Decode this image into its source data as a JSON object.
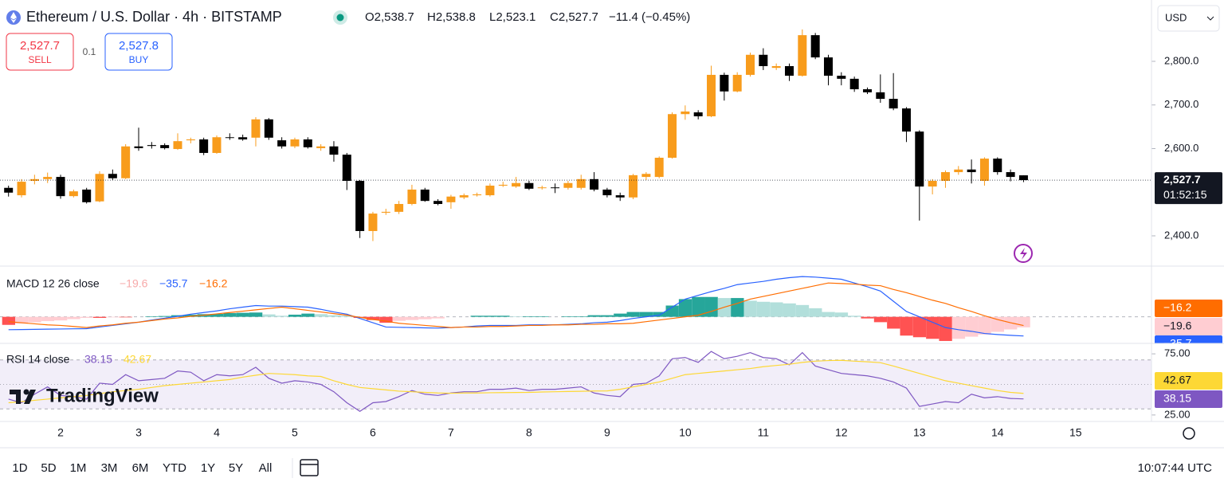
{
  "header": {
    "title": "Ethereum / U.S. Dollar · 4h · BITSTAMP",
    "ohlc": [
      "O2,538.7",
      "H2,538.8",
      "L2,523.1",
      "C2,527.7"
    ],
    "change": "−11.4 (−0.45%)"
  },
  "trade": {
    "sell_price": "2,527.7",
    "sell": "SELL",
    "qty": "0.1",
    "buy_price": "2,527.8",
    "buy": "BUY"
  },
  "currency": "USD",
  "brand": "TradingView",
  "toolbar": {
    "ranges": [
      "1D",
      "5D",
      "1M",
      "3M",
      "6M",
      "YTD",
      "1Y",
      "5Y",
      "All"
    ],
    "time": "10:07:44 UTC"
  },
  "chart_data": [
    {
      "type": "candlestick",
      "up_color": "#f89c1c",
      "down_color": "#000000",
      "categories": [
        null,
        null,
        null,
        null,
        "2",
        null,
        null,
        null,
        null,
        null,
        "3",
        null,
        null,
        null,
        null,
        null,
        "4",
        null,
        null,
        null,
        null,
        null,
        "5",
        null,
        null,
        null,
        null,
        null,
        "6",
        null,
        null,
        null,
        null,
        null,
        "7",
        null,
        null,
        null,
        null,
        null,
        "8",
        null,
        null,
        null,
        null,
        null,
        "9",
        null,
        null,
        null,
        null,
        null,
        "10",
        null,
        null,
        null,
        null,
        null,
        "11",
        null,
        null,
        null,
        null,
        null,
        "12",
        null,
        null,
        null,
        null,
        null,
        "13",
        null,
        null,
        null,
        null,
        null,
        "14",
        null,
        null,
        null,
        null,
        null,
        "15",
        null,
        null,
        null,
        null,
        null
      ],
      "open": [
        2510,
        2493,
        2526,
        2530,
        2535,
        2491,
        2506,
        2479,
        2542,
        2532,
        2605,
        2608,
        2608,
        2599,
        2619,
        2621,
        2590,
        2626,
        2626,
        2625,
        2667,
        2619,
        2605,
        2621,
        2601,
        2605,
        2586,
        2526,
        2411,
        2453,
        2455,
        2473,
        2506,
        2480,
        2477,
        2488,
        2493,
        2493,
        2515,
        2513,
        2521,
        2510,
        2511,
        2510,
        2510,
        2530,
        2506,
        2493,
        2488,
        2535,
        2535,
        2579,
        2679,
        2683,
        2674,
        2769,
        2731,
        2769,
        2815,
        2785,
        2789,
        2767,
        2860,
        2809,
        2767,
        2760,
        2736,
        2729,
        2714,
        2692,
        2639,
        2513,
        2526,
        2546,
        2552,
        2526,
        2577,
        2546,
        2538.7,
        null,
        null,
        null,
        null,
        null,
        null,
        null,
        null,
        null
      ],
      "high": [
        2515,
        2530,
        2540,
        2545,
        2540,
        2506,
        2510,
        2548,
        2552,
        2610,
        2648,
        2615,
        2612,
        2635,
        2625,
        2625,
        2630,
        2635,
        2632,
        2672,
        2670,
        2626,
        2625,
        2626,
        2610,
        2617,
        2590,
        2528,
        2455,
        2462,
        2480,
        2517,
        2510,
        2484,
        2494,
        2497,
        2499,
        2520,
        2524,
        2535,
        2526,
        2515,
        2520,
        2526,
        2540,
        2546,
        2510,
        2499,
        2542,
        2546,
        2582,
        2683,
        2699,
        2688,
        2790,
        2774,
        2775,
        2820,
        2830,
        2795,
        2795,
        2873,
        2865,
        2815,
        2775,
        2765,
        2740,
        2770,
        2773,
        2695,
        2642,
        2530,
        2550,
        2560,
        2575,
        2580,
        2580,
        2552,
        2538.8,
        null,
        null,
        null,
        null,
        null,
        null,
        null,
        null,
        null
      ],
      "low": [
        2490,
        2488,
        2518,
        2521,
        2485,
        2488,
        2474,
        2477,
        2528,
        2530,
        2595,
        2600,
        2598,
        2597,
        2612,
        2585,
        2588,
        2620,
        2618,
        2605,
        2620,
        2600,
        2601,
        2600,
        2595,
        2570,
        2505,
        2395,
        2388,
        2448,
        2450,
        2470,
        2478,
        2470,
        2462,
        2484,
        2490,
        2490,
        2512,
        2510,
        2505,
        2506,
        2498,
        2506,
        2506,
        2502,
        2488,
        2480,
        2484,
        2528,
        2532,
        2577,
        2666,
        2667,
        2672,
        2710,
        2729,
        2765,
        2780,
        2780,
        2755,
        2765,
        2805,
        2745,
        2745,
        2730,
        2725,
        2705,
        2688,
        2615,
        2435,
        2495,
        2510,
        2540,
        2520,
        2515,
        2540,
        2525,
        2523.1,
        null,
        null,
        null,
        null,
        null,
        null,
        null,
        null,
        null
      ],
      "close": [
        2499,
        2524,
        2530,
        2535,
        2491,
        2502,
        2477,
        2542,
        2532,
        2605,
        2601,
        2606,
        2601,
        2617,
        2621,
        2590,
        2626,
        2625,
        2621,
        2667,
        2625,
        2605,
        2621,
        2603,
        2605,
        2586,
        2526,
        2411,
        2451,
        2455,
        2473,
        2506,
        2480,
        2473,
        2490,
        2493,
        2495,
        2515,
        2517,
        2521,
        2508,
        2511,
        2510,
        2521,
        2530,
        2506,
        2493,
        2488,
        2539,
        2542,
        2579,
        2679,
        2685,
        2674,
        2769,
        2731,
        2769,
        2815,
        2789,
        2789,
        2767,
        2860,
        2809,
        2767,
        2760,
        2736,
        2729,
        2714,
        2692,
        2639,
        2513,
        2526,
        2546,
        2552,
        2546,
        2577,
        2546,
        2535,
        2527.7,
        null,
        null,
        null,
        null,
        null,
        null,
        null,
        null,
        null
      ],
      "last_label": "2,527.7",
      "countdown": "01:52:15",
      "ylim": [
        2332.4,
        2940.6
      ],
      "yticks": [
        {
          "value": 2400,
          "label": "2,400.0"
        },
        {
          "value": 2600,
          "label": "2,600.0"
        },
        {
          "value": 2700,
          "label": "2,700.0"
        },
        {
          "value": 2800,
          "label": "2,800.0"
        }
      ],
      "grid": false
    },
    {
      "type": "macd",
      "title": "MACD 12 26 close",
      "ylim": [
        -49.5,
        93
      ],
      "histogram": {
        "colors": [
          "#26a69a",
          "#b2dfdb",
          "#ff5252",
          "#ffcdd2"
        ],
        "last_label": "−19.6",
        "values": [
          -15,
          -12.7,
          -10.3,
          -8,
          -6.7,
          -4.3,
          -2,
          -2,
          -1,
          -1,
          0,
          1,
          1.5,
          3,
          4,
          5,
          5.5,
          7,
          7.5,
          8,
          4.5,
          2,
          4,
          6,
          5,
          3,
          2,
          -2,
          -6,
          -11,
          -7.5,
          -6,
          -4.5,
          -3,
          0,
          0,
          2,
          2,
          2,
          1,
          1,
          1,
          0,
          1,
          1,
          3,
          3,
          6,
          9,
          9,
          9,
          21,
          33,
          37,
          37,
          35,
          35,
          30,
          28,
          27,
          25,
          22,
          16,
          9,
          8,
          2,
          -3,
          -10,
          -22,
          -35,
          -38,
          -41,
          -45,
          -41,
          -37,
          -33,
          -28,
          -23.5,
          -19.6
        ]
      },
      "macd": {
        "color": "#2962ff",
        "last_label": "−35.7",
        "values": [
          -24,
          -23.7,
          -23.3,
          -23,
          -22.7,
          -22.3,
          -22,
          -19,
          -16,
          -13,
          -10,
          -6,
          -2.5,
          1,
          5,
          8,
          11,
          15,
          18,
          21,
          20,
          20,
          19,
          18,
          14,
          9,
          5,
          -3,
          -11,
          -19,
          -19.5,
          -20,
          -20.5,
          -21,
          -20,
          -19,
          -17,
          -16,
          -16,
          -16,
          -15,
          -15,
          -15,
          -14,
          -13,
          -11,
          -10,
          -7,
          -3,
          0,
          3,
          18,
          33,
          40,
          47,
          53,
          60,
          63,
          66,
          70,
          73,
          75,
          74,
          72,
          70,
          63,
          56,
          48,
          29,
          10,
          0,
          -10,
          -20,
          -24,
          -27,
          -31,
          -33,
          -34.5,
          -35.7
        ]
      },
      "signal": {
        "color": "#ff6d00",
        "last_label": "−16.2",
        "values": [
          -9,
          -11,
          -13,
          -15,
          -16,
          -18,
          -20,
          -17,
          -15,
          -12,
          -10,
          -7,
          -4,
          -2,
          1,
          3,
          5.5,
          8,
          10.5,
          13,
          15.5,
          18,
          15,
          12,
          9,
          6,
          3,
          -1,
          -5,
          -8,
          -12,
          -14,
          -16,
          -18,
          -20,
          -19,
          -19,
          -18,
          -18,
          -17,
          -16,
          -16,
          -15,
          -15,
          -14,
          -14,
          -13,
          -13,
          -12,
          -9,
          -6,
          -3,
          0,
          3,
          10,
          18,
          25,
          33,
          38,
          43,
          48,
          53,
          58,
          63,
          62,
          61,
          59,
          58,
          51,
          45,
          38,
          31,
          25,
          17,
          10,
          2,
          -5,
          -11,
          -16.2
        ]
      }
    },
    {
      "type": "rsi",
      "title": "RSI 14 close",
      "ylim": [
        19.7,
        82.9
      ],
      "levels": [
        30,
        50,
        70
      ],
      "band_color": "#7e57c2",
      "yticks": [
        {
          "value": 25,
          "label": "25.00"
        },
        {
          "value": 75,
          "label": "75.00"
        }
      ],
      "series": [
        {
          "color": "#7e57c2",
          "values": [
            38,
            35,
            42,
            48,
            41,
            40,
            38,
            51,
            50,
            58,
            53,
            54,
            55,
            61,
            60,
            53,
            58,
            57,
            58,
            64,
            55,
            51,
            53,
            52,
            50,
            44,
            35,
            28,
            35,
            36,
            40,
            45,
            42,
            41,
            43,
            44,
            44,
            46,
            46,
            47,
            45,
            46,
            46,
            47,
            48,
            43,
            41,
            40,
            50,
            51,
            57,
            71,
            72,
            68,
            77,
            71,
            73,
            76,
            72,
            71,
            66,
            76,
            65,
            62,
            59,
            58,
            57,
            55,
            52,
            47,
            32,
            34,
            36,
            35,
            42,
            39,
            40,
            38.5,
            38.15
          ]
        },
        {
          "color": "#fdd835",
          "values": [
            35,
            36,
            37,
            38,
            39,
            40,
            41,
            42.5,
            44,
            45,
            46,
            47.5,
            49,
            50,
            51,
            52,
            53,
            54,
            56,
            57.5,
            59,
            58.5,
            58,
            57,
            56.5,
            53,
            50,
            47.5,
            46.5,
            45.5,
            44.5,
            44,
            43.5,
            43,
            42.8,
            43,
            43,
            43.2,
            43.3,
            43.4,
            43.5,
            43.8,
            44,
            44.2,
            44.4,
            44.6,
            44.7,
            46,
            48,
            50,
            52,
            55,
            58,
            59,
            60,
            61,
            62,
            63,
            64.5,
            65.5,
            66.5,
            68,
            69,
            69.5,
            69.7,
            69,
            68.5,
            67.8,
            65,
            62,
            59,
            56,
            53,
            51,
            49,
            47,
            45,
            43.5,
            42.67
          ]
        }
      ]
    }
  ]
}
